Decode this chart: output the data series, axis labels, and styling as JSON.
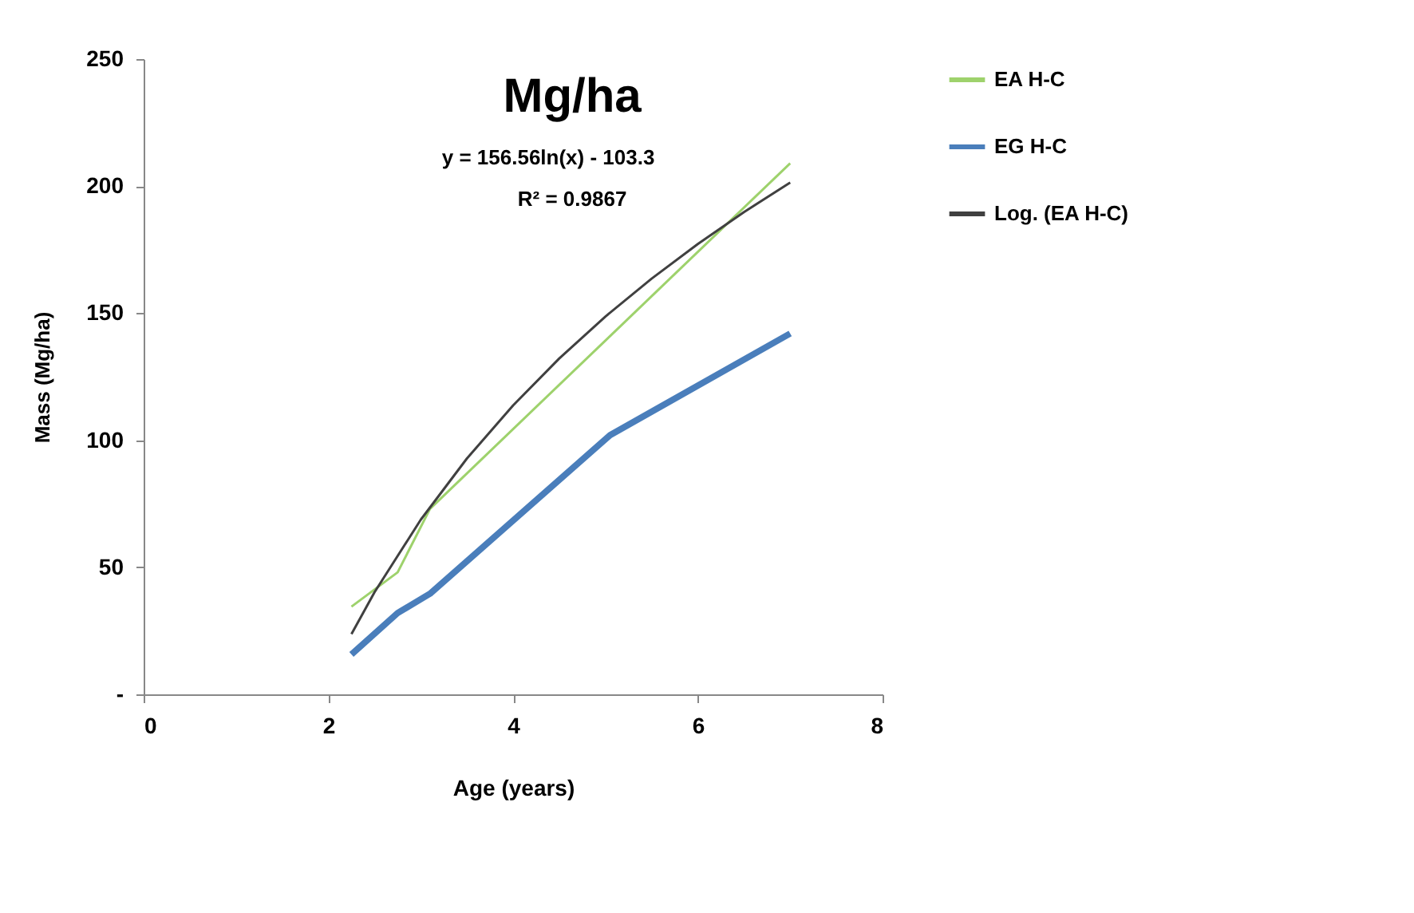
{
  "chart_data": {
    "type": "line",
    "title": "Mg/ha",
    "xlabel": "Age (years)",
    "ylabel": "Mass  (Mg/ha)",
    "annotations": [
      "y = 156.56ln(x) - 103.3",
      "R² = 0.9867"
    ],
    "series": [
      {
        "name": "EA H-C",
        "color": "#9ed26c",
        "x": [
          2.25,
          2.75,
          3.1,
          5.05,
          7
        ],
        "values": [
          34.5,
          48,
          73,
          141,
          209
        ]
      },
      {
        "name": "EG H-C",
        "color": "#4a7ebb",
        "x": [
          2.25,
          2.75,
          3.1,
          5.05,
          7
        ],
        "values": [
          15.7,
          32,
          39.6,
          102,
          142
        ]
      },
      {
        "name": "Log. (EA H-C)",
        "color": "#404040",
        "x": [
          2.25,
          2.5,
          3,
          3.5,
          4,
          4.5,
          5,
          5.5,
          6,
          6.5,
          7
        ],
        "values": [
          23.7,
          40.2,
          68.7,
          92.8,
          113.7,
          132.2,
          148.7,
          163.6,
          177.2,
          189.8,
          201.4
        ]
      }
    ],
    "xlim": [
      0,
      8
    ],
    "xticks": [
      0,
      2,
      4,
      6,
      8
    ],
    "ylim": [
      0,
      250
    ],
    "yticks": [
      {
        "value": 0,
        "label": "-"
      },
      50,
      100,
      150,
      200,
      250
    ],
    "grid": false,
    "legend": "right",
    "marker": "none",
    "line_style": "solid"
  }
}
